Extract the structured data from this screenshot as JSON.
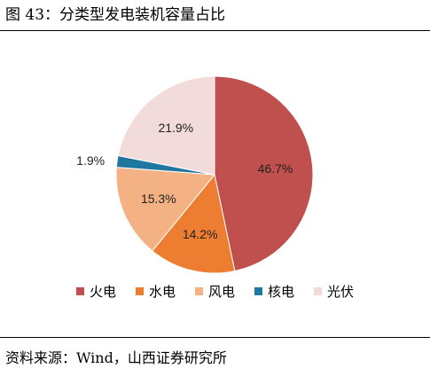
{
  "figure": {
    "title": "图 43：分类型发电装机容量占比",
    "source": "资料来源：Wind，山西证券研究所"
  },
  "chart_data": {
    "type": "pie",
    "categories": [
      "火电",
      "水电",
      "风电",
      "核电",
      "光伏"
    ],
    "values": [
      46.7,
      14.2,
      15.3,
      1.9,
      21.9
    ],
    "value_labels": [
      "46.7%",
      "14.2%",
      "15.3%",
      "1.9%",
      "21.9%"
    ],
    "unit": "%",
    "colors": [
      "#c0504d",
      "#ed7d31",
      "#f4b183",
      "#1f77a0",
      "#f2dcdb"
    ],
    "start_angle_deg": 0,
    "direction": "clockwise",
    "legend_position": "bottom"
  }
}
